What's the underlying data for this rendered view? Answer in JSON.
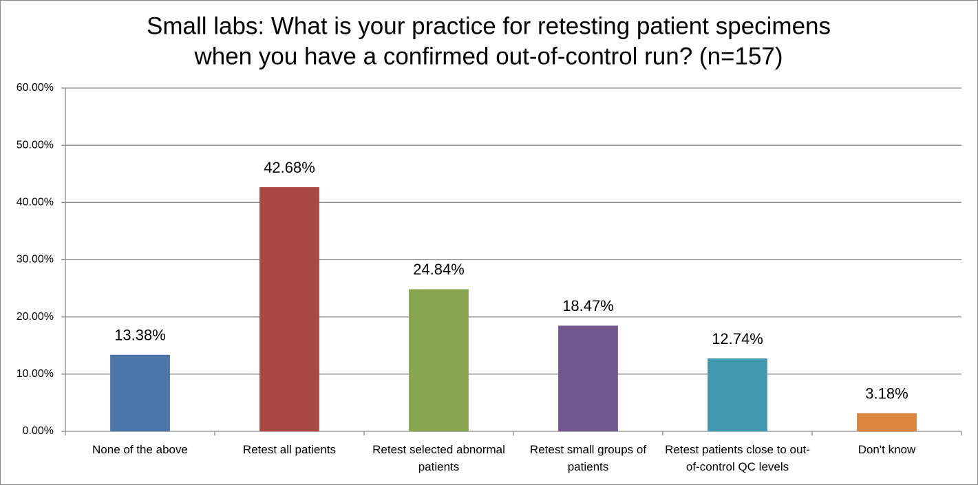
{
  "chart_data": {
    "type": "bar",
    "title": [
      "Small labs: What is your practice for retesting patient specimens",
      "when you have a confirmed out-of-control run? (n=157)"
    ],
    "categories": [
      "None of the above",
      "Retest all patients",
      "Retest selected abnormal patients",
      "Retest small groups of patients",
      "Retest patients close to out-of-control QC levels",
      "Don't know"
    ],
    "values": [
      13.38,
      42.68,
      24.84,
      18.47,
      12.74,
      3.18
    ],
    "value_labels": [
      "13.38%",
      "42.68%",
      "24.84%",
      "18.47%",
      "12.74%",
      "3.18%"
    ],
    "colors": [
      "#4a76aa",
      "#aa4844",
      "#89a54e",
      "#71598f",
      "#4298ae",
      "#db843d"
    ],
    "ylim": [
      0,
      60
    ],
    "yticks": [
      {
        "value": 0,
        "label": "0.00%"
      },
      {
        "value": 10,
        "label": "10.00%"
      },
      {
        "value": 20,
        "label": "20.00%"
      },
      {
        "value": 30,
        "label": "30.00%"
      },
      {
        "value": 40,
        "label": "40.00%"
      },
      {
        "value": 50,
        "label": "50.00%"
      },
      {
        "value": 60,
        "label": "60.00%"
      }
    ],
    "grid": true
  }
}
